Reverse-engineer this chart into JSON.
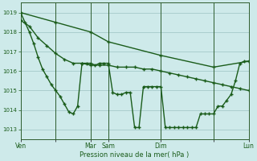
{
  "background_color": "#ceeaea",
  "grid_color": "#aacece",
  "line_color": "#1a5c1a",
  "xlabel": "Pression niveau de la mer( hPa )",
  "ylim": [
    1012.5,
    1019.5
  ],
  "yticks": [
    1013,
    1014,
    1015,
    1016,
    1017,
    1018,
    1019
  ],
  "x_total": 312,
  "series1_x": [
    0,
    6,
    12,
    18,
    24,
    30,
    36,
    42,
    48,
    54,
    60,
    66,
    72,
    78,
    84,
    90,
    96,
    102,
    108,
    114,
    120,
    126,
    132,
    138,
    144,
    150,
    156,
    162,
    168,
    174,
    180,
    186,
    192,
    198,
    204,
    210,
    216,
    222,
    228,
    234,
    240,
    246,
    252,
    258,
    264,
    270,
    276,
    282,
    288,
    294,
    300,
    306,
    312
  ],
  "series1_y": [
    1019.0,
    1018.5,
    1018.0,
    1017.4,
    1016.7,
    1016.1,
    1015.7,
    1015.3,
    1015.0,
    1014.7,
    1014.3,
    1013.9,
    1013.8,
    1014.2,
    1016.4,
    1016.4,
    1016.4,
    1016.3,
    1016.4,
    1016.4,
    1016.4,
    1014.9,
    1014.8,
    1014.8,
    1014.9,
    1014.9,
    1013.1,
    1013.1,
    1015.2,
    1015.2,
    1015.2,
    1015.2,
    1015.2,
    1013.1,
    1013.1,
    1013.1,
    1013.1,
    1013.1,
    1013.1,
    1013.1,
    1013.1,
    1013.8,
    1013.8,
    1013.8,
    1013.8,
    1014.2,
    1014.2,
    1014.5,
    1014.8,
    1015.5,
    1016.4,
    1016.5,
    1016.5
  ],
  "series2_x": [
    0,
    48,
    96,
    120,
    192,
    264,
    312
  ],
  "series2_y": [
    1019.0,
    1018.5,
    1018.0,
    1017.5,
    1016.8,
    1016.2,
    1016.5
  ],
  "series3_x": [
    0,
    12,
    24,
    36,
    48,
    60,
    72,
    84,
    96,
    108,
    120,
    132,
    144,
    156,
    168,
    180,
    192,
    204,
    216,
    228,
    240,
    252,
    264,
    276,
    288,
    300,
    312
  ],
  "series3_y": [
    1018.6,
    1018.3,
    1017.7,
    1017.3,
    1016.9,
    1016.6,
    1016.4,
    1016.4,
    1016.3,
    1016.3,
    1016.3,
    1016.2,
    1016.2,
    1016.2,
    1016.1,
    1016.1,
    1016.0,
    1015.9,
    1015.8,
    1015.7,
    1015.6,
    1015.5,
    1015.4,
    1015.3,
    1015.2,
    1015.1,
    1015.0
  ],
  "x_vlines": [
    48,
    96,
    120,
    192,
    264,
    312
  ],
  "xtick_pos": [
    0,
    48,
    96,
    120,
    192,
    264,
    312
  ],
  "xtick_labels": [
    "Ven",
    "",
    "Mar",
    "Sam",
    "Dim",
    "",
    "Lun"
  ]
}
